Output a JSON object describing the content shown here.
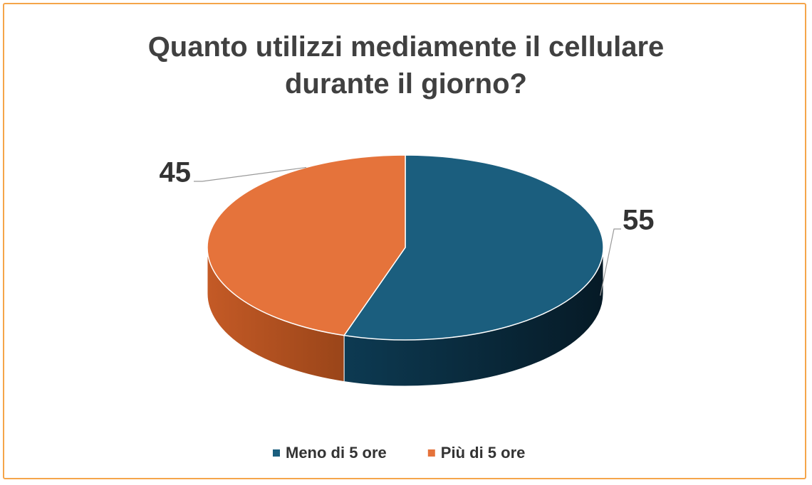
{
  "chart_data": {
    "type": "pie",
    "title": "Quanto utilizzi mediamente il cellulare durante il giorno?",
    "categories": [
      "Meno di 5 ore",
      "Più di 5 ore"
    ],
    "values": [
      55,
      45
    ],
    "colors": [
      "#1b5e7e",
      "#e5733b"
    ],
    "legend": "bottom"
  }
}
